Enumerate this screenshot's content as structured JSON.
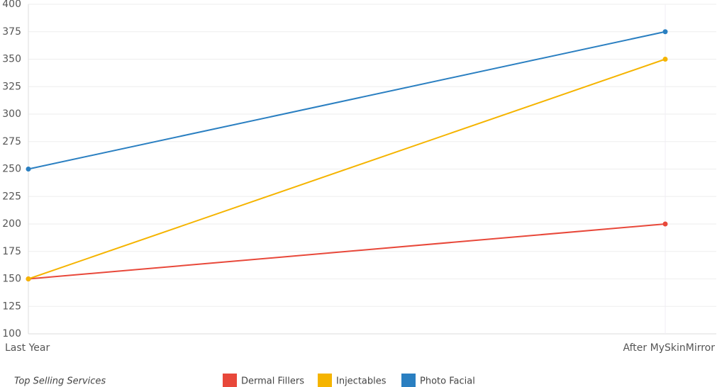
{
  "chart_data": {
    "type": "line",
    "title": "Top Selling Services",
    "categories": [
      "Last Year",
      "After MySkinMirror"
    ],
    "series": [
      {
        "name": "Dermal Fillers",
        "color": "#e8483a",
        "values": [
          150,
          200
        ]
      },
      {
        "name": "Injectables",
        "color": "#f5b400",
        "values": [
          150,
          350
        ]
      },
      {
        "name": "Photo Facial",
        "color": "#2a7fc1",
        "values": [
          250,
          375
        ]
      }
    ],
    "ylim": [
      100,
      400
    ],
    "yticks": [
      100,
      125,
      150,
      175,
      200,
      225,
      250,
      275,
      300,
      325,
      350,
      375,
      400
    ],
    "grid": true
  }
}
